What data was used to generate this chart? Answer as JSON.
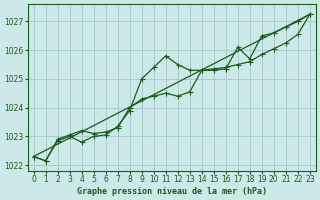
{
  "title": "Graphe pression niveau de la mer (hPa)",
  "bg_color": "#cce8e8",
  "grid_color": "#aacccc",
  "line_color": "#1a5c1a",
  "marker_color": "#1a5c1a",
  "xlim": [
    -0.5,
    23.5
  ],
  "ylim": [
    1021.8,
    1027.6
  ],
  "yticks": [
    1022,
    1023,
    1024,
    1025,
    1026,
    1027
  ],
  "xticks": [
    0,
    1,
    2,
    3,
    4,
    5,
    6,
    7,
    8,
    9,
    10,
    11,
    12,
    13,
    14,
    15,
    16,
    17,
    18,
    19,
    20,
    21,
    22,
    23
  ],
  "series1_x": [
    0,
    1,
    2,
    3,
    4,
    5,
    6,
    7,
    8,
    9,
    10,
    11,
    12,
    13,
    14,
    15,
    16,
    17,
    18,
    19,
    20,
    21,
    22,
    23
  ],
  "series1_y": [
    1022.3,
    1022.15,
    1022.85,
    1023.0,
    1022.8,
    1023.0,
    1023.05,
    1023.35,
    1023.9,
    1025.0,
    1025.4,
    1025.8,
    1025.5,
    1025.3,
    1025.3,
    1025.3,
    1025.35,
    1026.1,
    1025.7,
    1026.5,
    1026.6,
    1026.8,
    1027.0,
    1027.25
  ],
  "series2_x": [
    0,
    1,
    2,
    3,
    4,
    5,
    6,
    7,
    8,
    9,
    10,
    11,
    12,
    13,
    14,
    15,
    16,
    17,
    18,
    19,
    20,
    21,
    22,
    23
  ],
  "series2_y": [
    1022.3,
    1022.15,
    1022.9,
    1023.05,
    1023.2,
    1023.1,
    1023.15,
    1023.3,
    1024.0,
    1024.3,
    1024.4,
    1024.5,
    1024.4,
    1024.55,
    1025.3,
    1025.35,
    1025.4,
    1025.5,
    1025.6,
    1025.85,
    1026.05,
    1026.25,
    1026.55,
    1027.25
  ],
  "series3_x": [
    0,
    23
  ],
  "series3_y": [
    1022.3,
    1027.25
  ]
}
